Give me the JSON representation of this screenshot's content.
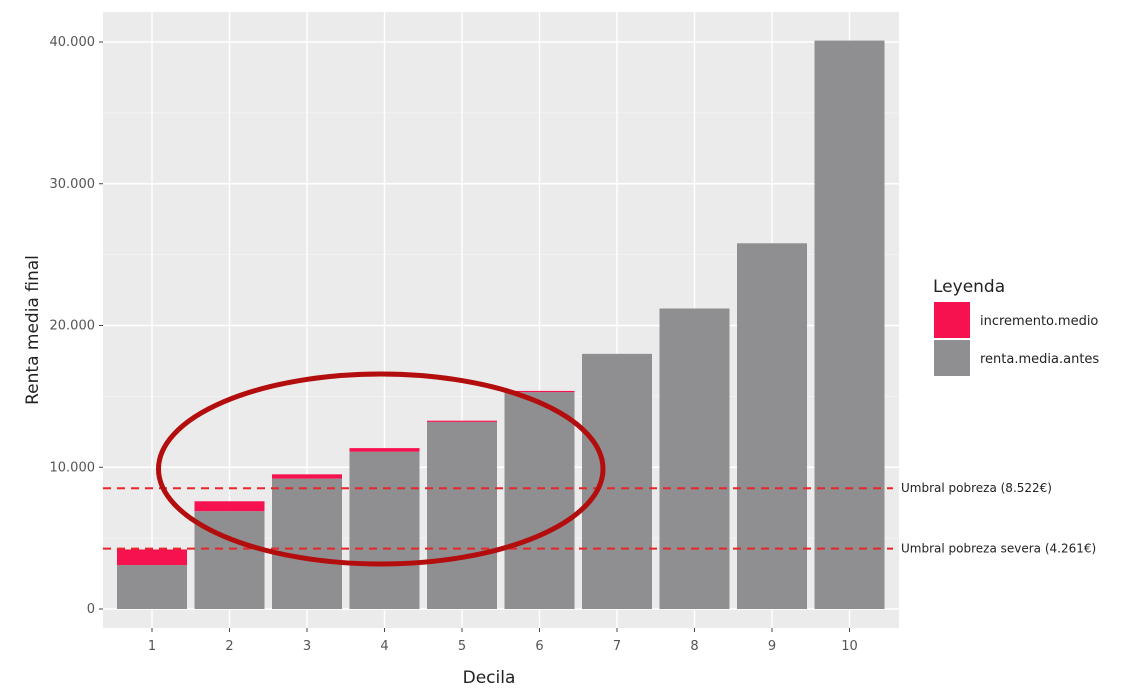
{
  "chart_data": {
    "type": "bar",
    "stacked": true,
    "categories": [
      "1",
      "2",
      "3",
      "4",
      "5",
      "6",
      "7",
      "8",
      "9",
      "10"
    ],
    "series": [
      {
        "name": "renta.media.antes",
        "color": "#8f8f91",
        "values": [
          3100,
          6900,
          9200,
          11100,
          13200,
          15300,
          18000,
          21200,
          25800,
          40100
        ]
      },
      {
        "name": "incremento.medio",
        "color": "#f5124f",
        "values": [
          1100,
          700,
          300,
          250,
          60,
          50,
          0,
          0,
          0,
          0
        ]
      }
    ],
    "xlabel": "Decila",
    "ylabel": "Renta media final",
    "ylim": [
      0,
      42000
    ],
    "yticks": [
      0,
      10000,
      20000,
      30000,
      40000
    ],
    "ytick_labels": [
      "0",
      "10.000",
      "20.000",
      "30.000",
      "40.000"
    ],
    "grid": true,
    "legend": {
      "title": "Leyenda",
      "position": "right",
      "entries": [
        {
          "label": "incremento.medio",
          "color": "#f5124f"
        },
        {
          "label": "renta.media.antes",
          "color": "#8f8f91"
        }
      ]
    },
    "reference_lines": [
      {
        "y": 8522,
        "label": "Umbral pobreza (8.522€)",
        "color": "#e8262a"
      },
      {
        "y": 4261,
        "label": "Umbral pobreza severa (4.261€)",
        "color": "#e8262a"
      }
    ],
    "highlight": {
      "shape": "ellipse",
      "color": "#b30d0d",
      "x_from": "2",
      "x_to": "5"
    }
  }
}
